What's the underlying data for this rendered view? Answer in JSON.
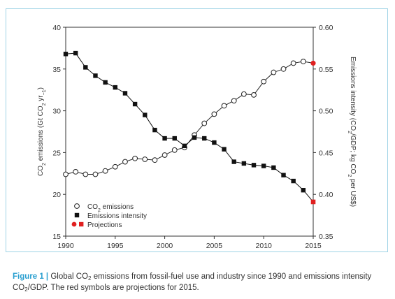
{
  "chart_data": {
    "type": "line",
    "x_ticks": [
      "1990",
      "1995",
      "2000",
      "2005",
      "2010",
      "2015"
    ],
    "x_range": [
      1990,
      2015
    ],
    "y_left": {
      "label_parts": [
        "CO",
        "2",
        " emissions (Gt CO",
        "2",
        " yr",
        "−1",
        ")"
      ],
      "range": [
        15,
        40
      ],
      "ticks": [
        "15",
        "20",
        "25",
        "30",
        "35",
        "40"
      ]
    },
    "y_right": {
      "label_parts": [
        "Emissions intensity (CO",
        "2",
        "/GDP; kg CO",
        "2",
        " per US$)"
      ],
      "range": [
        0.35,
        0.6
      ],
      "ticks": [
        "0.35",
        "0.40",
        "0.45",
        "0.50",
        "0.55",
        "0.60"
      ]
    },
    "series": [
      {
        "name": "CO2 emissions",
        "axis": "left",
        "marker": "open-circle",
        "color": "#222222",
        "x": [
          1990,
          1991,
          1992,
          1993,
          1994,
          1995,
          1996,
          1997,
          1998,
          1999,
          2000,
          2001,
          2002,
          2003,
          2004,
          2005,
          2006,
          2007,
          2008,
          2009,
          2010,
          2011,
          2012,
          2013,
          2014
        ],
        "values": [
          22.4,
          22.7,
          22.4,
          22.4,
          22.8,
          23.3,
          23.9,
          24.3,
          24.2,
          24.1,
          24.7,
          25.3,
          25.6,
          27.1,
          28.5,
          29.6,
          30.6,
          31.2,
          32.0,
          31.9,
          33.5,
          34.6,
          35.0,
          35.7,
          35.9
        ]
      },
      {
        "name": "Emissions intensity",
        "axis": "right",
        "marker": "filled-square",
        "color": "#111111",
        "x": [
          1990,
          1991,
          1992,
          1993,
          1994,
          1995,
          1996,
          1997,
          1998,
          1999,
          2000,
          2001,
          2002,
          2003,
          2004,
          2005,
          2006,
          2007,
          2008,
          2009,
          2010,
          2011,
          2012,
          2013,
          2014
        ],
        "values": [
          0.568,
          0.569,
          0.552,
          0.542,
          0.534,
          0.528,
          0.521,
          0.508,
          0.495,
          0.477,
          0.467,
          0.467,
          0.458,
          0.468,
          0.467,
          0.462,
          0.454,
          0.439,
          0.437,
          0.435,
          0.434,
          0.432,
          0.423,
          0.416,
          0.405
        ]
      }
    ],
    "projections": {
      "name": "Projections",
      "color": "#e02020",
      "year": 2015,
      "co2": 35.7,
      "intensity": 0.391
    },
    "legend": {
      "placement": "bottom-left",
      "items": [
        {
          "marker": "open-circle",
          "parts": [
            "CO",
            "2",
            " emissions"
          ]
        },
        {
          "marker": "filled-square",
          "parts": [
            "Emissions intensity"
          ]
        },
        {
          "marker": "red-pair",
          "parts": [
            "Projections"
          ]
        }
      ]
    }
  },
  "caption": {
    "label": "Figure 1 |",
    "parts": [
      " Global CO",
      "2",
      " emissions from fossil-fuel use and industry since 1990 and emissions intensity CO",
      "2",
      "/GDP. The red symbols are projections for 2015."
    ]
  }
}
